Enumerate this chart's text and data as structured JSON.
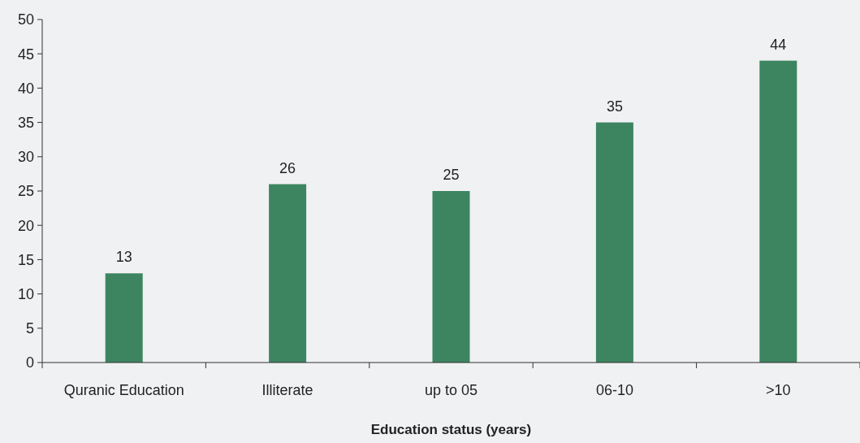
{
  "chart_data": {
    "type": "bar",
    "xlabel": "Education status (years)",
    "categories": [
      "Quranic Education",
      "Illiterate",
      "up to 05",
      "06-10",
      ">10"
    ],
    "values": [
      13,
      26,
      25,
      35,
      44
    ],
    "color": "#3d8560",
    "data_labels": true,
    "ylim": [
      0,
      50
    ],
    "yticks": [
      0,
      5,
      10,
      15,
      20,
      25,
      30,
      35,
      40,
      45,
      50
    ]
  }
}
